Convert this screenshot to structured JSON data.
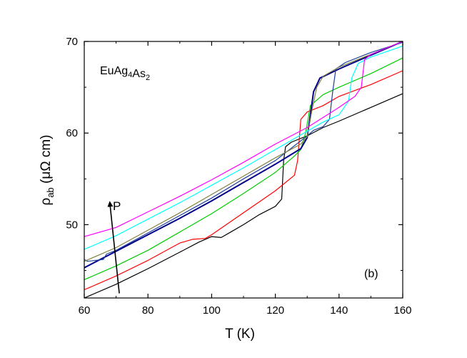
{
  "chart_data": {
    "type": "line",
    "xlim": [
      60,
      160
    ],
    "ylim": [
      42,
      70
    ],
    "xticks": [
      60,
      80,
      100,
      120,
      140,
      160
    ],
    "yticks": [
      50,
      60,
      70
    ],
    "xlabel": "T (K)",
    "ylabel_main": "ρ",
    "ylabel_sub": "ab",
    "ylabel_unit": " (μΩ cm)",
    "compound": {
      "base": [
        "Eu",
        "Ag",
        "As"
      ],
      "subs": [
        "",
        "4",
        "2"
      ]
    },
    "panel_label": "(b)",
    "arrow_label": "P",
    "arrow": {
      "from": [
        71,
        42.5
      ],
      "to": [
        68,
        52.5
      ]
    },
    "grid": false,
    "legend": "none",
    "series": [
      {
        "color": "#000000",
        "values": [
          [
            60,
            42.0
          ],
          [
            70,
            43.5
          ],
          [
            80,
            45.2
          ],
          [
            90,
            47.0
          ],
          [
            96,
            48.1
          ],
          [
            100,
            48.7
          ],
          [
            103,
            48.6
          ],
          [
            106,
            49.2
          ],
          [
            110,
            50.0
          ],
          [
            115,
            51.1
          ],
          [
            120,
            52.0
          ],
          [
            122,
            52.8
          ],
          [
            122.6,
            57.0
          ],
          [
            123.2,
            58.5
          ],
          [
            125,
            59.0
          ],
          [
            130,
            59.7
          ],
          [
            135,
            60.6
          ],
          [
            140,
            61.3
          ],
          [
            150,
            62.8
          ],
          [
            160,
            64.3
          ]
        ]
      },
      {
        "color": "#ff0000",
        "values": [
          [
            60,
            42.9
          ],
          [
            70,
            44.4
          ],
          [
            80,
            46.1
          ],
          [
            90,
            48.0
          ],
          [
            94,
            48.4
          ],
          [
            98,
            48.5
          ],
          [
            100,
            48.9
          ],
          [
            110,
            51.3
          ],
          [
            120,
            53.7
          ],
          [
            126,
            55.4
          ],
          [
            127,
            57.0
          ],
          [
            128,
            61.5
          ],
          [
            130,
            62.3
          ],
          [
            135,
            63.0
          ],
          [
            140,
            64.0
          ],
          [
            150,
            65.3
          ],
          [
            160,
            66.8
          ]
        ]
      },
      {
        "color": "#00cc00",
        "values": [
          [
            60,
            44.0
          ],
          [
            70,
            45.5
          ],
          [
            80,
            47.2
          ],
          [
            90,
            49.2
          ],
          [
            100,
            51.2
          ],
          [
            110,
            53.4
          ],
          [
            120,
            55.7
          ],
          [
            126,
            57.5
          ],
          [
            128,
            58.2
          ],
          [
            129.5,
            60.0
          ],
          [
            131,
            63.0
          ],
          [
            135,
            64.2
          ],
          [
            140,
            65.0
          ],
          [
            150,
            66.5
          ],
          [
            160,
            68.2
          ]
        ]
      },
      {
        "color": "#00008b",
        "values": [
          [
            60,
            45.3
          ],
          [
            70,
            47.1
          ],
          [
            80,
            48.9
          ],
          [
            90,
            50.7
          ],
          [
            100,
            52.6
          ],
          [
            110,
            54.6
          ],
          [
            120,
            56.6
          ],
          [
            128,
            58.3
          ],
          [
            130,
            59.5
          ],
          [
            131,
            62.0
          ],
          [
            132,
            64.5
          ],
          [
            134,
            66.0
          ],
          [
            140,
            67.0
          ],
          [
            150,
            68.5
          ],
          [
            160,
            70.0
          ]
        ]
      },
      {
        "color": "#1c3f9e",
        "values": [
          [
            60,
            46.2
          ],
          [
            61,
            46.0
          ],
          [
            66,
            46.2
          ],
          [
            67,
            46.8
          ],
          [
            70,
            47.2
          ],
          [
            80,
            49.1
          ],
          [
            90,
            51.0
          ],
          [
            100,
            52.9
          ],
          [
            110,
            55.0
          ],
          [
            120,
            57.0
          ],
          [
            130,
            59.7
          ],
          [
            132,
            60.3
          ],
          [
            135,
            60.7
          ],
          [
            137,
            61.5
          ],
          [
            138,
            64.5
          ],
          [
            139,
            67.0
          ],
          [
            142,
            67.7
          ],
          [
            150,
            68.8
          ],
          [
            160,
            69.9
          ]
        ]
      },
      {
        "color": "#808040",
        "values": [
          [
            60,
            46.0
          ],
          [
            70,
            47.5
          ],
          [
            80,
            49.4
          ],
          [
            90,
            51.3
          ],
          [
            100,
            53.3
          ],
          [
            110,
            55.3
          ],
          [
            120,
            57.3
          ],
          [
            128,
            58.8
          ],
          [
            130,
            59.6
          ],
          [
            131.5,
            62.5
          ],
          [
            133,
            65.0
          ],
          [
            135,
            66.2
          ],
          [
            140,
            67.2
          ],
          [
            150,
            68.6
          ],
          [
            160,
            70.0
          ]
        ]
      },
      {
        "color": "#00ffff",
        "values": [
          [
            60,
            47.3
          ],
          [
            70,
            48.8
          ],
          [
            80,
            50.6
          ],
          [
            90,
            52.4
          ],
          [
            100,
            54.3
          ],
          [
            110,
            56.2
          ],
          [
            120,
            58.2
          ],
          [
            130,
            60.2
          ],
          [
            135,
            61.2
          ],
          [
            140,
            62.0
          ],
          [
            143,
            63.5
          ],
          [
            144,
            66.0
          ],
          [
            146,
            67.6
          ],
          [
            150,
            68.3
          ],
          [
            160,
            69.5
          ]
        ]
      },
      {
        "color": "#ff00ff",
        "values": [
          [
            60,
            48.7
          ],
          [
            70,
            49.7
          ],
          [
            80,
            51.4
          ],
          [
            90,
            53.1
          ],
          [
            100,
            54.9
          ],
          [
            110,
            56.8
          ],
          [
            120,
            58.8
          ],
          [
            130,
            60.6
          ],
          [
            140,
            62.8
          ],
          [
            145,
            64.0
          ],
          [
            147,
            65.0
          ],
          [
            148,
            68.0
          ],
          [
            150,
            68.6
          ],
          [
            160,
            70.0
          ]
        ]
      }
    ]
  }
}
